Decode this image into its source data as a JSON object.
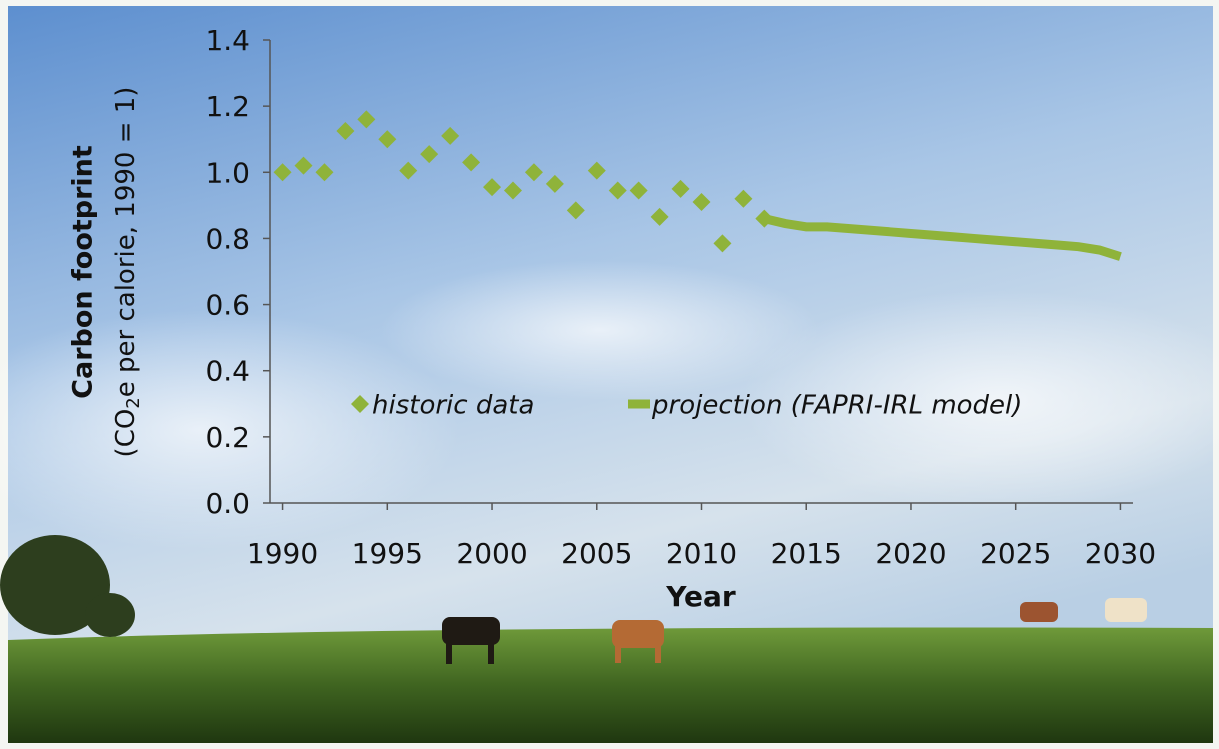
{
  "chart_data": {
    "type": "scatter",
    "y_label": "Carbon footprint",
    "y_label_sub": {
      "before": "(CO",
      "sub": "2",
      "after": "e per calorie, 1990 = 1)"
    },
    "x_label": "Year",
    "xlim": [
      1989.4,
      2030.6
    ],
    "xticks": [
      1990,
      1995,
      2000,
      2005,
      2010,
      2015,
      2020,
      2025,
      2030
    ],
    "ylim": [
      0,
      1.4
    ],
    "yticks": [
      {
        "value": 0,
        "label": "0.0"
      },
      {
        "value": 0.2,
        "label": "0.2"
      },
      {
        "value": 0.4,
        "label": "0.4"
      },
      {
        "value": 0.6,
        "label": "0.6"
      },
      {
        "value": 0.8,
        "label": "0.8"
      },
      {
        "value": 1.0,
        "label": "1.0"
      },
      {
        "value": 1.2,
        "label": "1.2"
      },
      {
        "value": 1.4,
        "label": "1.4"
      }
    ],
    "grid": false,
    "series": [
      {
        "name": "historic data",
        "type": "scatter",
        "color": "#8fb33a",
        "x": [
          1990,
          1991,
          1992,
          1993,
          1994,
          1995,
          1996,
          1997,
          1998,
          1999,
          2000,
          2001,
          2002,
          2003,
          2004,
          2005,
          2006,
          2007,
          2008,
          2009,
          2010,
          2011,
          2012,
          2013
        ],
        "values": [
          1.0,
          1.02,
          1.0,
          1.125,
          1.16,
          1.1,
          1.005,
          1.055,
          1.11,
          1.03,
          0.955,
          0.945,
          1.0,
          0.965,
          0.885,
          1.005,
          0.945,
          0.945,
          0.865,
          0.95,
          0.91,
          0.785,
          0.92,
          0.86
        ]
      },
      {
        "name": "projection (FAPRI-IRL model)",
        "type": "line",
        "color": "#8fb33a",
        "x": [
          2013,
          2014,
          2015,
          2016,
          2017,
          2018,
          2019,
          2020,
          2021,
          2022,
          2023,
          2024,
          2025,
          2026,
          2027,
          2028,
          2029,
          2030
        ],
        "values": [
          0.86,
          0.845,
          0.835,
          0.835,
          0.83,
          0.825,
          0.82,
          0.815,
          0.81,
          0.805,
          0.8,
          0.795,
          0.79,
          0.785,
          0.78,
          0.775,
          0.765,
          0.745
        ]
      }
    ]
  }
}
